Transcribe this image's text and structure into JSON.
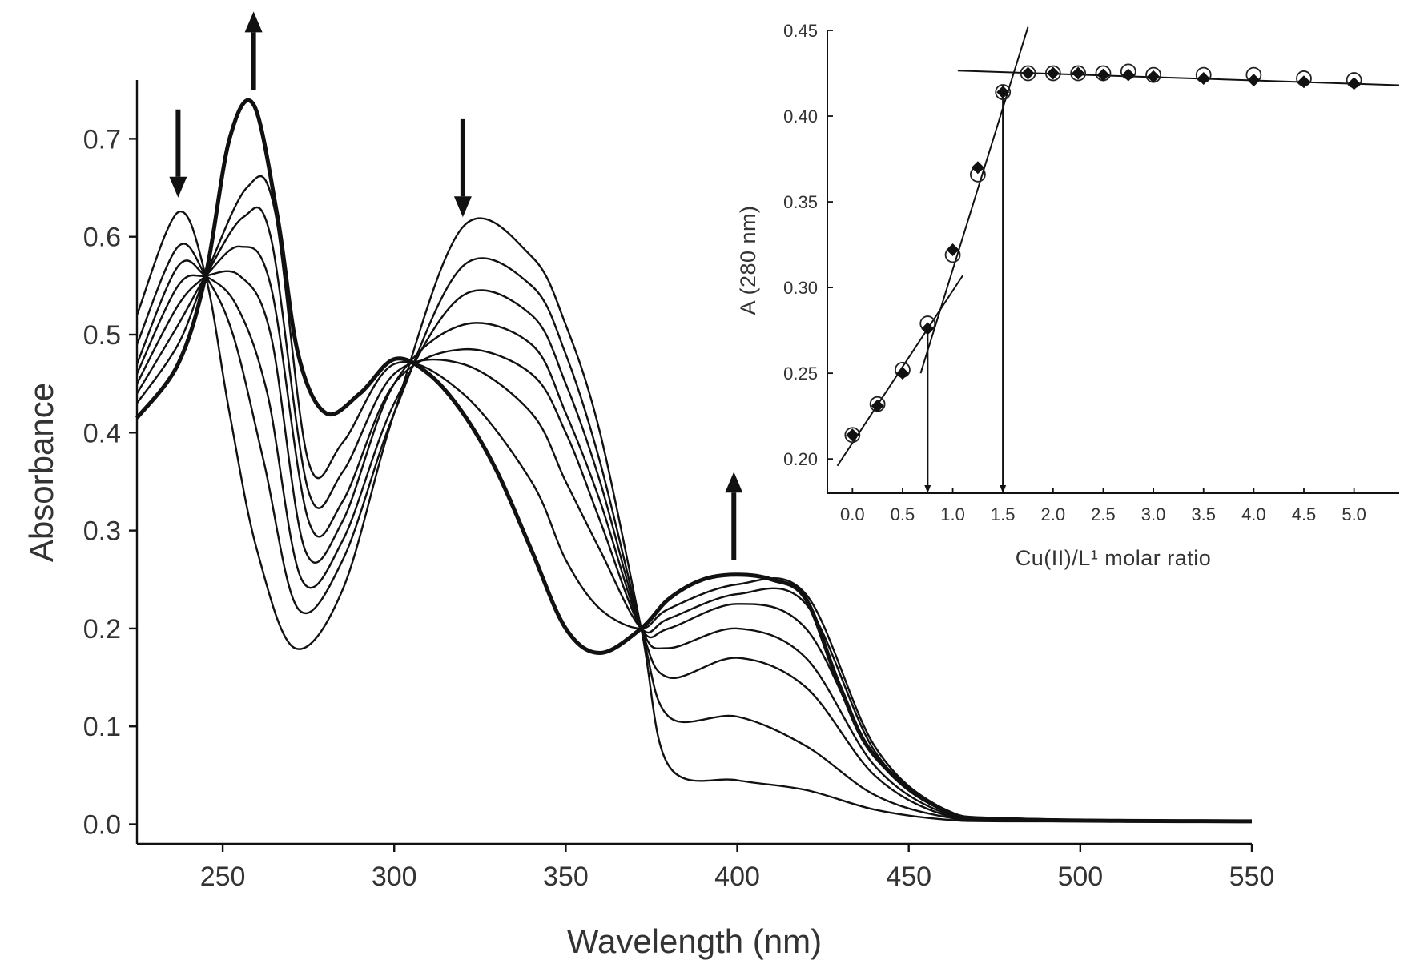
{
  "chart_data": [
    {
      "type": "line",
      "name": "uv-vis-titration-spectra",
      "xlabel": "Wavelength (nm)",
      "ylabel": "Absorbance",
      "xlim": [
        225,
        550
      ],
      "ylim": [
        -0.02,
        0.76
      ],
      "x_ticks": [
        250,
        300,
        350,
        400,
        450,
        500,
        550
      ],
      "y_ticks": [
        0.0,
        0.1,
        0.2,
        0.3,
        0.4,
        0.5,
        0.6,
        0.7
      ],
      "x_tick_labels": [
        "250",
        "300",
        "350",
        "400",
        "450",
        "500",
        "550"
      ],
      "y_tick_labels": [
        "0.0",
        "0.1",
        "0.2",
        "0.3",
        "0.4",
        "0.5",
        "0.6",
        "0.7"
      ],
      "annotations": [
        {
          "type": "arrow",
          "direction": "down",
          "x": 237,
          "y_from": 0.73,
          "y_to": 0.64
        },
        {
          "type": "arrow",
          "direction": "up",
          "x": 259,
          "y_from": 0.75,
          "y_to": 0.83
        },
        {
          "type": "arrow",
          "direction": "down",
          "x": 320,
          "y_from": 0.72,
          "y_to": 0.62
        },
        {
          "type": "arrow",
          "direction": "up",
          "x": 399,
          "y_from": 0.27,
          "y_to": 0.36
        }
      ],
      "series": [
        {
          "name": "spectrum-1",
          "x": [
            225,
            237,
            245,
            252,
            260,
            271,
            285,
            300,
            320,
            340,
            350,
            360,
            372,
            380,
            400,
            420,
            440,
            460,
            480,
            550
          ],
          "y": [
            0.52,
            0.625,
            0.56,
            0.42,
            0.28,
            0.18,
            0.24,
            0.42,
            0.61,
            0.58,
            0.51,
            0.4,
            0.2,
            0.06,
            0.045,
            0.035,
            0.015,
            0.005,
            0.003,
            0.003
          ]
        },
        {
          "name": "spectrum-2",
          "x": [
            225,
            237,
            245,
            253,
            262,
            272,
            285,
            300,
            320,
            340,
            350,
            360,
            372,
            380,
            400,
            420,
            440,
            460,
            480,
            550
          ],
          "y": [
            0.49,
            0.59,
            0.56,
            0.5,
            0.37,
            0.22,
            0.27,
            0.42,
            0.57,
            0.55,
            0.48,
            0.37,
            0.2,
            0.11,
            0.11,
            0.08,
            0.03,
            0.008,
            0.004,
            0.003
          ]
        },
        {
          "name": "spectrum-3",
          "x": [
            225,
            237,
            245,
            254,
            263,
            273,
            285,
            300,
            320,
            340,
            350,
            360,
            372,
            380,
            400,
            420,
            440,
            460,
            480,
            550
          ],
          "y": [
            0.47,
            0.57,
            0.56,
            0.53,
            0.44,
            0.25,
            0.29,
            0.43,
            0.54,
            0.52,
            0.45,
            0.35,
            0.2,
            0.15,
            0.17,
            0.14,
            0.05,
            0.01,
            0.005,
            0.003
          ]
        },
        {
          "name": "spectrum-4",
          "x": [
            225,
            237,
            245,
            255,
            264,
            274,
            285,
            300,
            320,
            340,
            350,
            360,
            372,
            380,
            400,
            420,
            440,
            460,
            480,
            550
          ],
          "y": [
            0.46,
            0.55,
            0.56,
            0.56,
            0.5,
            0.28,
            0.31,
            0.45,
            0.51,
            0.49,
            0.42,
            0.33,
            0.2,
            0.18,
            0.2,
            0.17,
            0.06,
            0.012,
            0.005,
            0.003
          ]
        },
        {
          "name": "spectrum-5",
          "x": [
            225,
            237,
            245,
            255,
            264,
            275,
            285,
            300,
            320,
            340,
            350,
            360,
            372,
            380,
            400,
            420,
            440,
            460,
            480,
            550
          ],
          "y": [
            0.45,
            0.53,
            0.56,
            0.59,
            0.55,
            0.31,
            0.33,
            0.45,
            0.485,
            0.46,
            0.4,
            0.31,
            0.2,
            0.2,
            0.225,
            0.2,
            0.07,
            0.014,
            0.006,
            0.003
          ]
        },
        {
          "name": "spectrum-6",
          "x": [
            225,
            237,
            245,
            256,
            264,
            275,
            285,
            300,
            320,
            340,
            350,
            360,
            372,
            380,
            400,
            420,
            440,
            460,
            480,
            550
          ],
          "y": [
            0.44,
            0.51,
            0.56,
            0.62,
            0.6,
            0.34,
            0.36,
            0.46,
            0.47,
            0.42,
            0.35,
            0.28,
            0.2,
            0.21,
            0.235,
            0.225,
            0.075,
            0.015,
            0.006,
            0.003
          ]
        },
        {
          "name": "spectrum-7",
          "x": [
            225,
            237,
            245,
            257,
            265,
            275,
            285,
            300,
            320,
            340,
            350,
            360,
            372,
            380,
            400,
            420,
            440,
            460,
            480,
            550
          ],
          "y": [
            0.43,
            0.49,
            0.56,
            0.65,
            0.63,
            0.37,
            0.39,
            0.47,
            0.44,
            0.35,
            0.27,
            0.22,
            0.2,
            0.22,
            0.245,
            0.235,
            0.08,
            0.016,
            0.006,
            0.003
          ]
        },
        {
          "name": "spectrum-final-overlay",
          "bold": true,
          "x": [
            225,
            237,
            245,
            252,
            259,
            266,
            272,
            280,
            290,
            300,
            310,
            320,
            330,
            340,
            350,
            360,
            372,
            380,
            390,
            400,
            410,
            420,
            430,
            440,
            460,
            480,
            550
          ],
          "y": [
            0.415,
            0.47,
            0.56,
            0.7,
            0.735,
            0.62,
            0.48,
            0.42,
            0.44,
            0.475,
            0.46,
            0.42,
            0.36,
            0.28,
            0.2,
            0.175,
            0.2,
            0.23,
            0.25,
            0.255,
            0.25,
            0.23,
            0.14,
            0.07,
            0.015,
            0.005,
            0.003
          ]
        }
      ]
    },
    {
      "type": "scatter",
      "name": "inset-molar-ratio-plot",
      "xlabel": "Cu(II)/L¹ molar ratio",
      "ylabel": "A (280 nm)",
      "xlim": [
        -0.25,
        5.45
      ],
      "ylim": [
        0.18,
        0.45
      ],
      "x_ticks": [
        0.0,
        0.5,
        1.0,
        1.5,
        2.0,
        2.5,
        3.0,
        3.5,
        4.0,
        4.5,
        5.0
      ],
      "y_ticks": [
        0.2,
        0.25,
        0.3,
        0.35,
        0.4,
        0.45
      ],
      "x_tick_labels": [
        "0.0",
        "0.5",
        "1.0",
        "1.5",
        "2.0",
        "2.5",
        "3.0",
        "3.5",
        "4.0",
        "4.5",
        "5.0"
      ],
      "y_tick_labels": [
        "0.20",
        "0.25",
        "0.30",
        "0.35",
        "0.40",
        "0.45"
      ],
      "series": [
        {
          "name": "filled-diamonds",
          "marker": "diamond",
          "x": [
            0.0,
            0.25,
            0.5,
            0.75,
            1.0,
            1.25,
            1.5,
            1.75,
            2.0,
            2.25,
            2.5,
            2.75,
            3.0,
            3.5,
            4.0,
            4.5,
            5.0
          ],
          "y": [
            0.214,
            0.231,
            0.25,
            0.276,
            0.322,
            0.37,
            0.414,
            0.425,
            0.425,
            0.425,
            0.424,
            0.424,
            0.423,
            0.422,
            0.421,
            0.42,
            0.419
          ]
        },
        {
          "name": "open-circles",
          "marker": "circle",
          "x": [
            0.0,
            0.25,
            0.5,
            0.75,
            1.0,
            1.25,
            1.5,
            1.75,
            2.0,
            2.25,
            2.5,
            2.75,
            3.0,
            3.5,
            4.0,
            4.5,
            5.0
          ],
          "y": [
            0.214,
            0.232,
            0.252,
            0.279,
            0.319,
            0.366,
            0.414,
            0.425,
            0.425,
            0.425,
            0.425,
            0.426,
            0.424,
            0.424,
            0.424,
            0.422,
            0.421
          ]
        }
      ],
      "fit_lines": [
        {
          "name": "initial-slope-fit",
          "x": [
            -0.15,
            1.1
          ],
          "y": [
            0.196,
            0.307
          ]
        },
        {
          "name": "steep-slope-fit",
          "x": [
            0.68,
            1.75
          ],
          "y": [
            0.25,
            0.452
          ]
        },
        {
          "name": "plateau-fit",
          "x": [
            1.05,
            5.45
          ],
          "y": [
            0.4265,
            0.418
          ]
        }
      ],
      "drop_lines": [
        {
          "name": "equivalence-0.75",
          "x": 0.75,
          "y_from": 0.276,
          "y_to": 0.18
        },
        {
          "name": "equivalence-1.5",
          "x": 1.5,
          "y_from": 0.414,
          "y_to": 0.18
        }
      ]
    }
  ]
}
